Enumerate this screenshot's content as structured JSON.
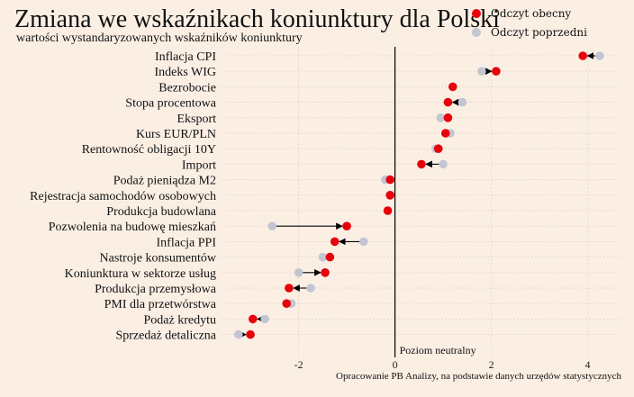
{
  "header": {
    "title": "Zmiana we wskaźnikach koniunktury dla Polski",
    "subtitle": "wartości wystandaryzowanych wskaźników koniunktury"
  },
  "legend": {
    "current_label": "Odczyt obecny",
    "previous_label": "Odczyt poprzedni"
  },
  "caption": "Opracowanie PB Analizy, na podstawie danych urzędów statystycznych",
  "colors": {
    "background": "#fbefe4",
    "current": "#e8000b",
    "previous": "#c3c5d3",
    "arrow": "#000000",
    "grid": "#d9cbbd"
  },
  "chart_data": {
    "type": "dot-arrow",
    "title": "Zmiana we wskaźnikach koniunktury dla Polski",
    "subtitle": "wartości wystandaryzowanych wskaźników koniunktury",
    "categories": [
      "Inflacja CPI",
      "Indeks WIG",
      "Bezrobocie",
      "Stopa procentowa",
      "Eksport",
      "Kurs EUR/PLN",
      "Rentowność obligacji 10Y",
      "Import",
      "Podaż pieniądza M2",
      "Rejestracja samochodów osobowych",
      "Produkcja budowlana",
      "Pozwolenia na budowę mieszkań",
      "Inflacja PPI",
      "Nastroje konsumentów",
      "Koniunktura w sektorze usług",
      "Produkcja przemysłowa",
      "PMI dla przetwórstwa",
      "Podaż kredytu",
      "Sprzedaż detaliczna"
    ],
    "series": [
      {
        "name": "Odczyt obecny",
        "values": [
          3.9,
          2.1,
          1.2,
          1.1,
          1.1,
          1.05,
          0.9,
          0.55,
          -0.1,
          -0.1,
          -0.15,
          -1.0,
          -1.25,
          -1.35,
          -1.45,
          -2.2,
          -2.25,
          -2.95,
          -3.0
        ]
      },
      {
        "name": "Odczyt poprzedni",
        "values": [
          4.25,
          1.8,
          1.2,
          1.4,
          0.95,
          1.15,
          0.85,
          1.0,
          -0.2,
          -0.1,
          -0.15,
          -2.55,
          -0.65,
          -1.5,
          -2.0,
          -1.75,
          -2.15,
          -2.7,
          -3.25
        ]
      }
    ],
    "x_ticks": [
      -2,
      0,
      2,
      4
    ],
    "xlim": [
      -3.6,
      4.7
    ],
    "reference_line": {
      "x": 0,
      "label": "Poziom neutralny"
    },
    "grid": true
  }
}
